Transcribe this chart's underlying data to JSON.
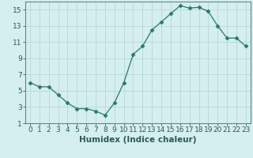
{
  "x": [
    0,
    1,
    2,
    3,
    4,
    5,
    6,
    7,
    8,
    9,
    10,
    11,
    12,
    13,
    14,
    15,
    16,
    17,
    18,
    19,
    20,
    21,
    22,
    23
  ],
  "y": [
    6.0,
    5.5,
    5.5,
    4.5,
    3.5,
    2.8,
    2.8,
    2.5,
    2.0,
    3.5,
    6.0,
    9.5,
    10.5,
    12.5,
    13.5,
    14.5,
    15.5,
    15.2,
    15.3,
    14.8,
    13.0,
    11.5,
    11.5,
    10.5
  ],
  "line_color": "#2a7a65",
  "marker": "D",
  "marker_size": 2.5,
  "bg_color": "#d5eeee",
  "grid_color": "#b8d8d8",
  "xlabel": "Humidex (Indice chaleur)",
  "ylim": [
    1,
    16
  ],
  "xlim": [
    -0.5,
    23.5
  ],
  "yticks": [
    1,
    3,
    5,
    7,
    9,
    11,
    13,
    15
  ],
  "xticks": [
    0,
    1,
    2,
    3,
    4,
    5,
    6,
    7,
    8,
    9,
    10,
    11,
    12,
    13,
    14,
    15,
    16,
    17,
    18,
    19,
    20,
    21,
    22,
    23
  ],
  "tick_fontsize": 6.5,
  "xlabel_fontsize": 7.5,
  "tick_color": "#2a5a5a",
  "spine_color": "#5a8a8a"
}
